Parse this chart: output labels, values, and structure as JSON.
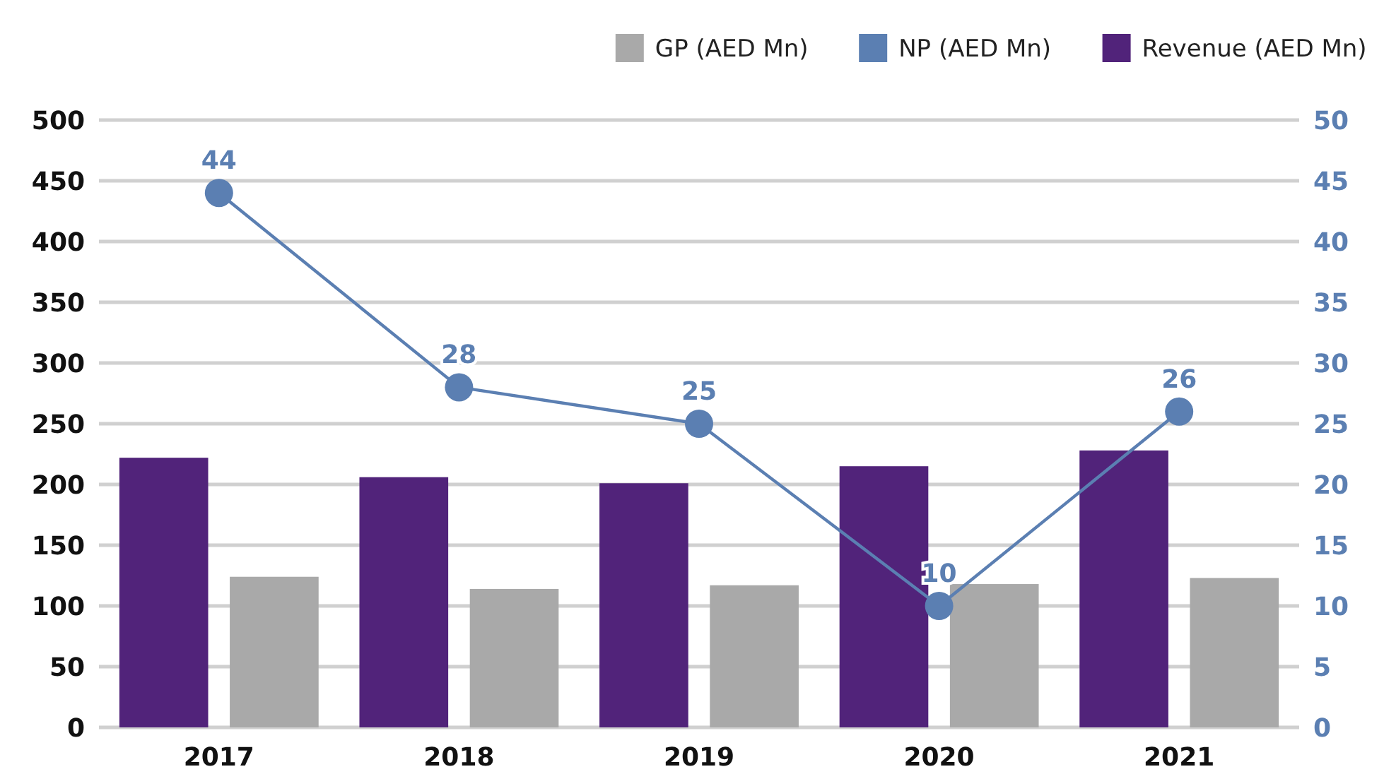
{
  "chart_data": {
    "type": "bar",
    "categories": [
      "2017",
      "2018",
      "2019",
      "2020",
      "2021"
    ],
    "series": [
      {
        "name": "GP (AED Mn)",
        "color": "#a9a9a9",
        "values": [
          124,
          114,
          117,
          118,
          123
        ]
      },
      {
        "name": "NP (AED Mn)",
        "type": "line",
        "axis": "y2",
        "color": "#5b7fb2",
        "values": [
          44,
          28,
          25,
          10,
          26
        ],
        "data_labels": true,
        "marker": "circle"
      },
      {
        "name": "Revenue (AED Mn)",
        "color": "#51237a",
        "values": [
          222,
          206,
          201,
          215,
          228
        ]
      }
    ],
    "ylim": [
      0,
      500
    ],
    "yticks": [
      0,
      50,
      100,
      150,
      200,
      250,
      300,
      350,
      400,
      450,
      500
    ],
    "y2lim": [
      0,
      50
    ],
    "y2ticks": [
      0,
      5,
      10,
      15,
      20,
      25,
      30,
      35,
      40,
      45,
      50
    ],
    "grid": "y",
    "legend": "top right"
  }
}
